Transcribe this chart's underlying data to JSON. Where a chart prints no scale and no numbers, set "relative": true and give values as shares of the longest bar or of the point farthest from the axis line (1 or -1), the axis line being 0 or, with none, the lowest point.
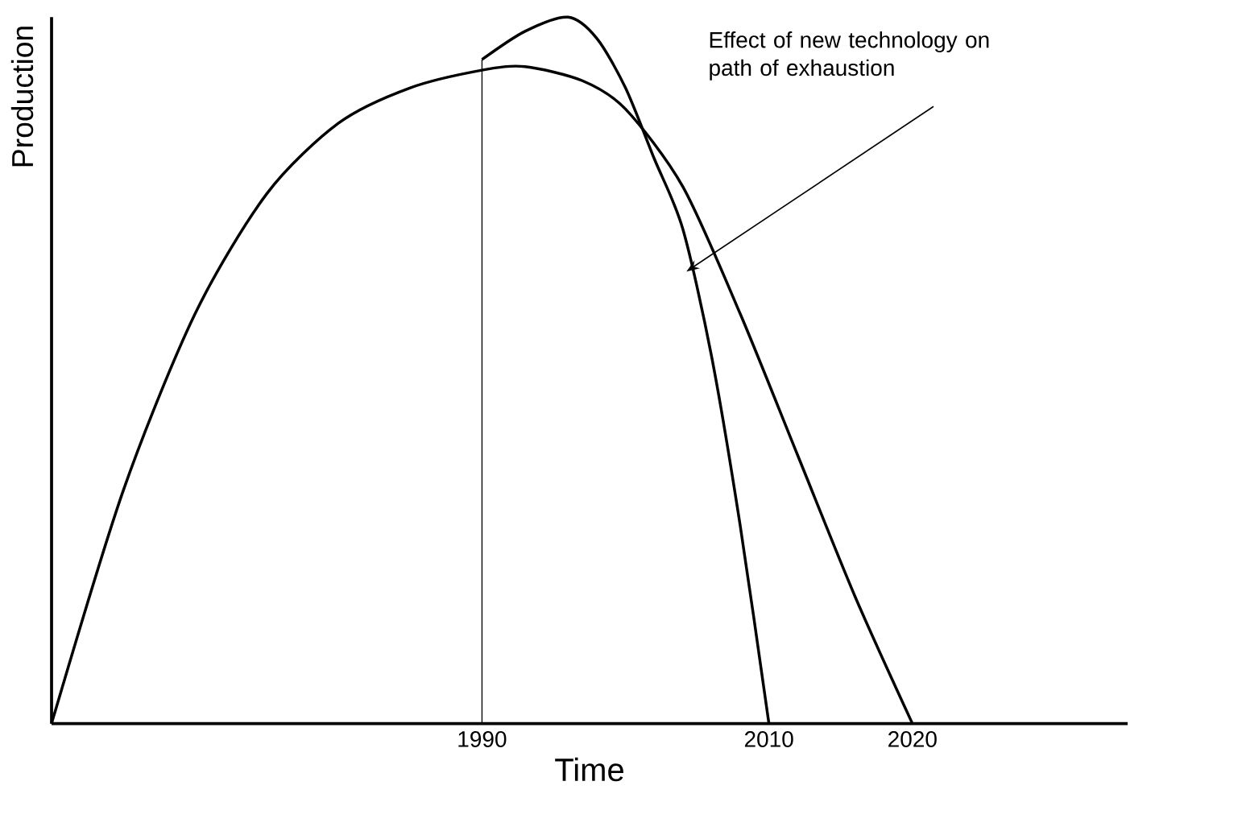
{
  "chart_data": {
    "type": "line",
    "relative": true,
    "xlabel": "Time",
    "ylabel": "Production",
    "xlim": [
      1960,
      2035
    ],
    "xticks": [
      1990,
      2010,
      2020
    ],
    "series": [
      {
        "color": "#000000",
        "x": [
          1960,
          1965,
          1970,
          1975,
          1980,
          1985,
          1990,
          1993,
          1997,
          2000,
          2004,
          2008,
          2012,
          2016,
          2020
        ],
        "values": [
          0,
          0.33,
          0.58,
          0.75,
          0.85,
          0.9,
          0.925,
          0.93,
          0.91,
          0.87,
          0.76,
          0.58,
          0.38,
          0.18,
          0
        ]
      },
      {
        "color": "#000000",
        "x": [
          1990,
          1993,
          1996,
          1998,
          2000,
          2002,
          2004,
          2006,
          2008,
          2010
        ],
        "values": [
          0.94,
          0.98,
          1.0,
          0.97,
          0.9,
          0.8,
          0.7,
          0.52,
          0.28,
          0
        ]
      }
    ],
    "ref_lines": [
      {
        "axis": "x",
        "value": 1990,
        "color": "#000000"
      }
    ],
    "annotations": [
      "Effect of new technology on path of  exhaustion"
    ],
    "marker": "none",
    "line_style": "solid",
    "grid": false
  }
}
